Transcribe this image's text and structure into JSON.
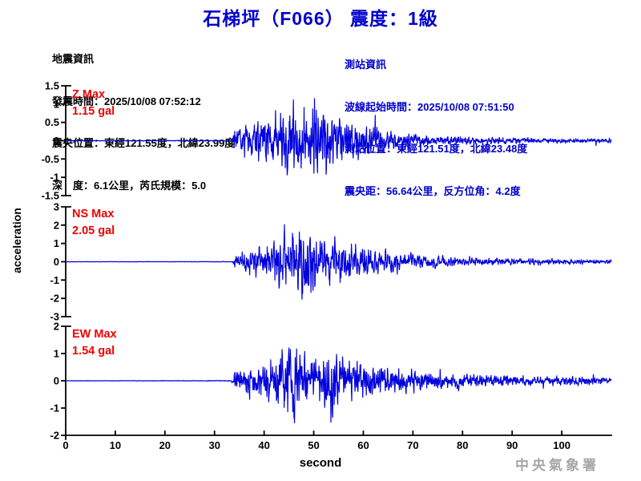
{
  "title": "石梯坪（F066） 震度：1級",
  "info_left": {
    "heading": "地震資訊",
    "lines": [
      "地震資訊",
      "發震時間：2025/10/08 07:52:12",
      "震央位置：東經121.55度，北緯23.99度",
      "深　度：6.1公里，芮氏規模：5.0"
    ]
  },
  "info_right": {
    "heading": "測站資訊",
    "lines": [
      "測站資訊",
      "波線起始時間：2025/10/08 07:51:50",
      "測站位置：東經121.51度，北緯23.48度",
      "震央距：56.64公里，反方位角：4.2度"
    ]
  },
  "watermark": "中央氣象署",
  "colors": {
    "title_blue": "#0000cc",
    "label_red": "#ee0000",
    "trace_blue": "#0000dd",
    "axis_black": "#000000",
    "watermark_gray": "#a6a6a6"
  },
  "chart_data": {
    "type": "line",
    "title": "石梯坪（F066） 震度：1級",
    "xlabel": "second",
    "ylabel": "acceleration",
    "xlim": [
      0,
      110
    ],
    "xticks": [
      0,
      10,
      20,
      30,
      40,
      50,
      60,
      70,
      80,
      90,
      100
    ],
    "sample_dt": 0.06,
    "onset_second": 33.8,
    "subplots": [
      {
        "id": "Z",
        "max_label": "Z Max",
        "max_text": "1.15 gal",
        "max_value": 1.15,
        "ylim": [
          -1.5,
          1.5
        ],
        "yticks": [
          1.5,
          1,
          0.5,
          0,
          -0.5,
          -1,
          -1.5
        ],
        "seed": 11,
        "envelope": [
          [
            0,
            0.006
          ],
          [
            15,
            0.008
          ],
          [
            25,
            0.01
          ],
          [
            33.6,
            0.012
          ],
          [
            34,
            0.28
          ],
          [
            36,
            0.4
          ],
          [
            39,
            0.5
          ],
          [
            42,
            0.62
          ],
          [
            44.5,
            0.85
          ],
          [
            46,
            1.0
          ],
          [
            47.5,
            0.8
          ],
          [
            49,
            0.72
          ],
          [
            51,
            0.85
          ],
          [
            53,
            0.8
          ],
          [
            55,
            0.6
          ],
          [
            58,
            0.45
          ],
          [
            61,
            0.32
          ],
          [
            64,
            0.25
          ],
          [
            68,
            0.18
          ],
          [
            72,
            0.14
          ],
          [
            78,
            0.1
          ],
          [
            85,
            0.08
          ],
          [
            95,
            0.06
          ],
          [
            110,
            0.05
          ]
        ]
      },
      {
        "id": "NS",
        "max_label": "NS Max",
        "max_text": "2.05 gal",
        "max_value": 2.05,
        "ylim": [
          -3,
          3
        ],
        "yticks": [
          3,
          2,
          1,
          0,
          -1,
          -2,
          -3
        ],
        "seed": 22,
        "envelope": [
          [
            0,
            0.005
          ],
          [
            25,
            0.007
          ],
          [
            33.6,
            0.01
          ],
          [
            34,
            0.18
          ],
          [
            36,
            0.28
          ],
          [
            39,
            0.38
          ],
          [
            42,
            0.55
          ],
          [
            45,
            0.8
          ],
          [
            47,
            1.0
          ],
          [
            48.5,
            0.95
          ],
          [
            50,
            0.8
          ],
          [
            52,
            0.7
          ],
          [
            54,
            0.62
          ],
          [
            57,
            0.5
          ],
          [
            60,
            0.4
          ],
          [
            63,
            0.3
          ],
          [
            67,
            0.24
          ],
          [
            71,
            0.19
          ],
          [
            76,
            0.15
          ],
          [
            82,
            0.11
          ],
          [
            90,
            0.09
          ],
          [
            100,
            0.07
          ],
          [
            110,
            0.06
          ]
        ]
      },
      {
        "id": "EW",
        "max_label": "EW Max",
        "max_text": "1.54 gal",
        "max_value": 1.54,
        "ylim": [
          -2,
          2
        ],
        "yticks": [
          2,
          1,
          0,
          -1,
          -2
        ],
        "seed": 33,
        "envelope": [
          [
            0,
            0.005
          ],
          [
            25,
            0.008
          ],
          [
            33.4,
            0.012
          ],
          [
            34,
            0.22
          ],
          [
            36,
            0.32
          ],
          [
            39,
            0.42
          ],
          [
            42,
            0.6
          ],
          [
            44.5,
            0.85
          ],
          [
            46,
            1.0
          ],
          [
            48,
            0.75
          ],
          [
            50,
            0.6
          ],
          [
            52.5,
            0.7
          ],
          [
            53.8,
            0.95
          ],
          [
            55,
            0.65
          ],
          [
            57,
            0.52
          ],
          [
            60,
            0.45
          ],
          [
            63,
            0.38
          ],
          [
            66,
            0.32
          ],
          [
            70,
            0.27
          ],
          [
            75,
            0.22
          ],
          [
            80,
            0.18
          ],
          [
            88,
            0.14
          ],
          [
            96,
            0.12
          ],
          [
            110,
            0.09
          ]
        ]
      }
    ]
  }
}
